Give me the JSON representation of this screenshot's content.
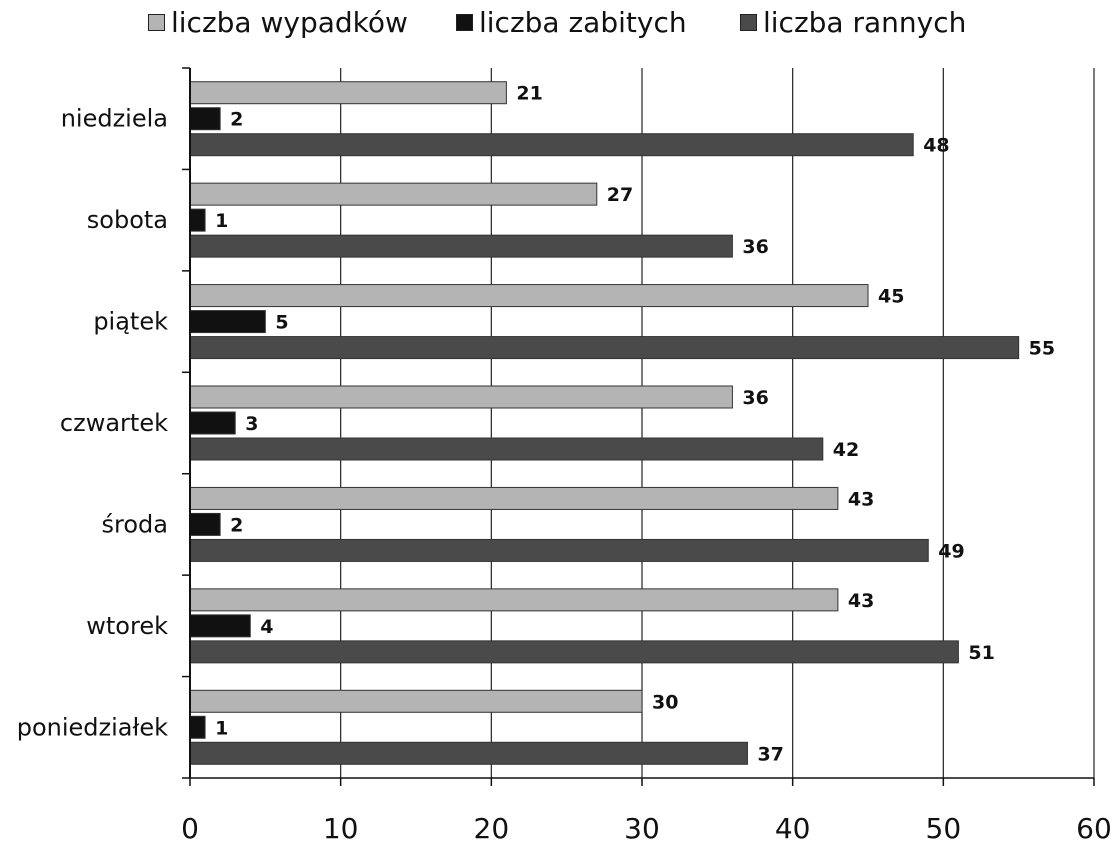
{
  "chart_data": {
    "type": "bar",
    "orientation": "horizontal",
    "categories": [
      "niedziela",
      "sobota",
      "piątek",
      "czwartek",
      "środa",
      "wtorek",
      "poniedziałek"
    ],
    "series": [
      {
        "name": "liczba wypadków",
        "color": "#b4b4b4",
        "values": [
          21,
          27,
          45,
          36,
          43,
          43,
          30
        ]
      },
      {
        "name": "liczba zabitych",
        "color": "#111111",
        "values": [
          2,
          1,
          5,
          3,
          2,
          4,
          1
        ]
      },
      {
        "name": "liczba rannych",
        "color": "#4a4a4a",
        "values": [
          48,
          36,
          55,
          42,
          49,
          51,
          37
        ]
      }
    ],
    "xlim": [
      0,
      60
    ],
    "xticks": [
      0,
      10,
      20,
      30,
      40,
      50,
      60
    ],
    "grid": "vertical",
    "legend_position": "top",
    "data_labels": true
  }
}
